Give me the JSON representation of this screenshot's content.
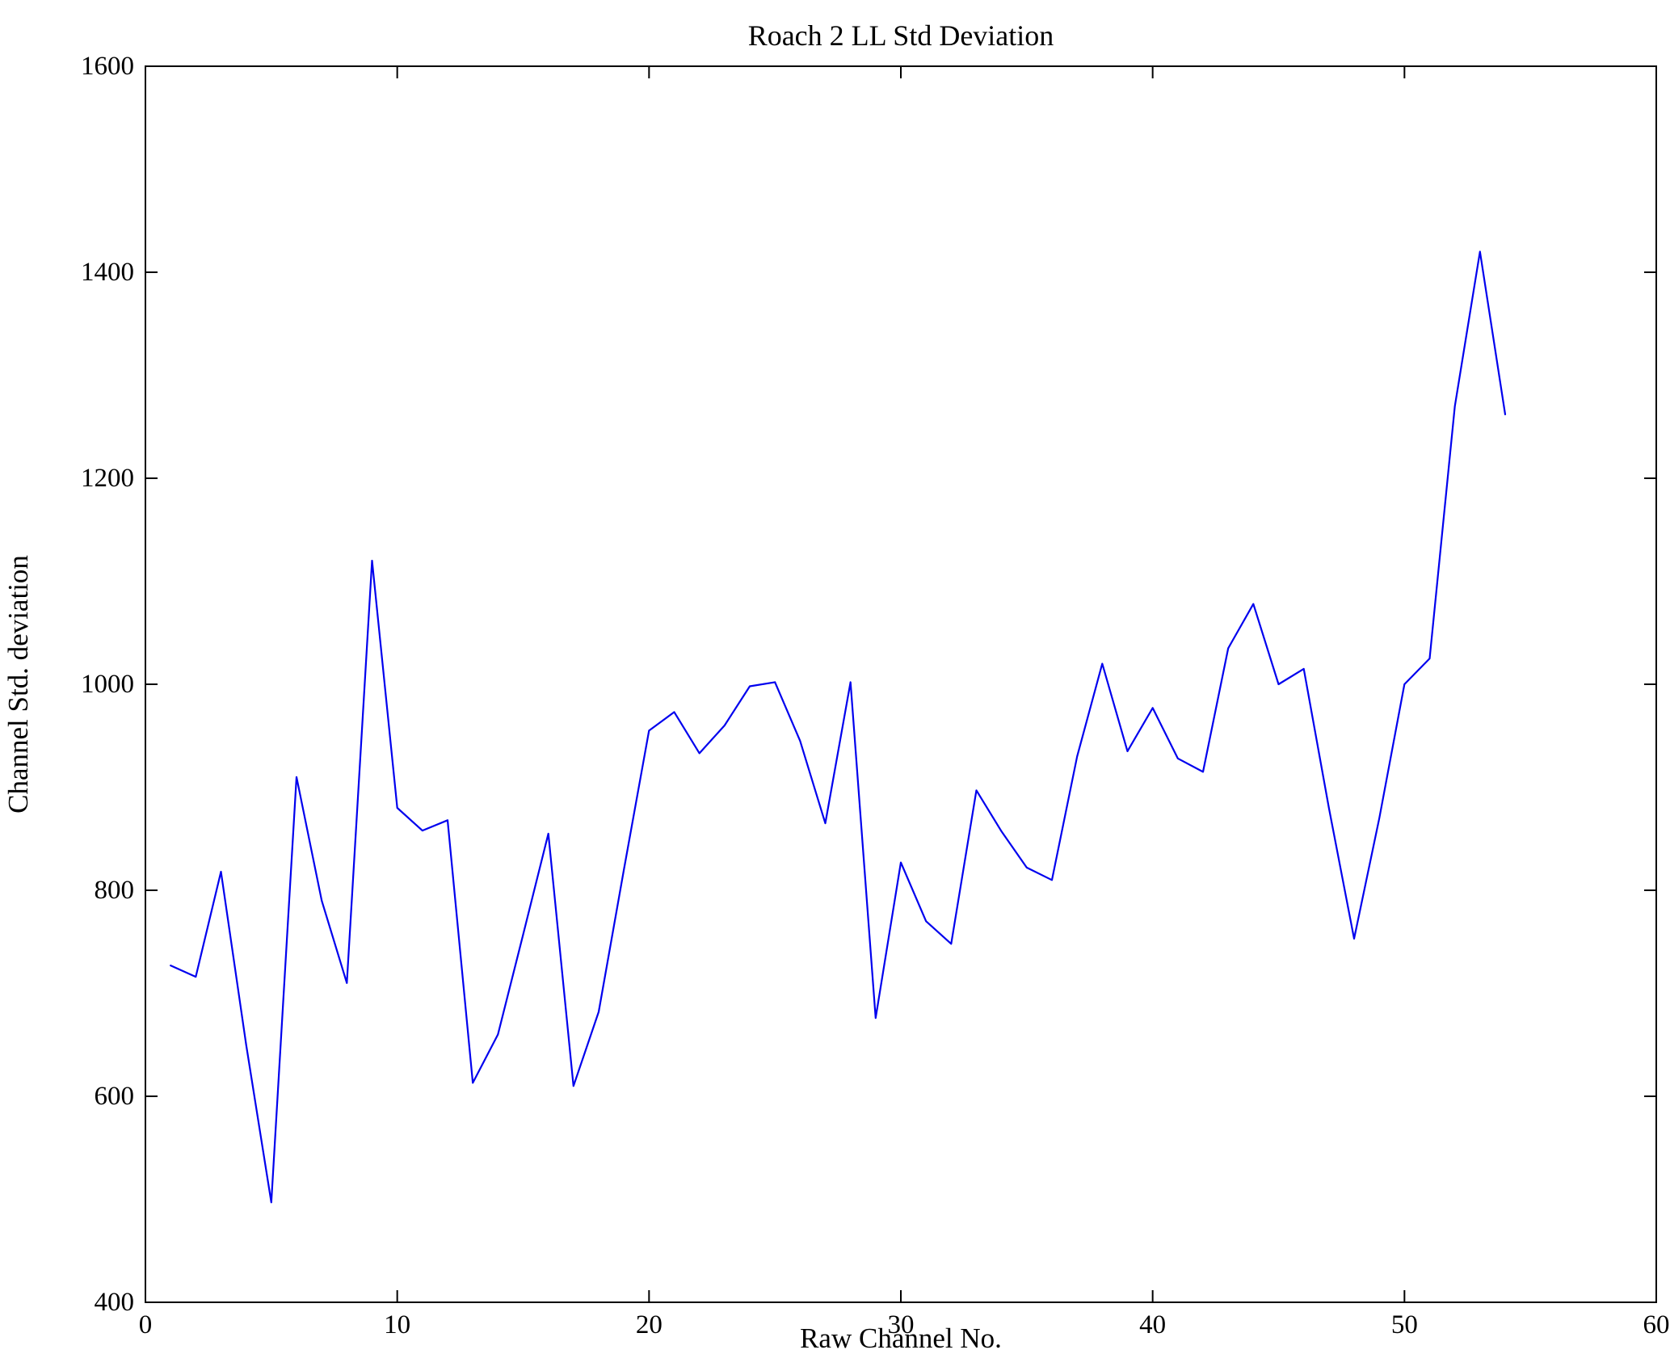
{
  "chart_data": {
    "type": "line",
    "title": "Roach 2 LL Std Deviation",
    "xlabel": "Raw Channel No.",
    "ylabel": "Channel Std. deviation",
    "xlim": [
      0,
      60
    ],
    "ylim": [
      400,
      1600
    ],
    "x_ticks": [
      0,
      10,
      20,
      30,
      40,
      50,
      60
    ],
    "y_ticks": [
      400,
      600,
      800,
      1000,
      1200,
      1400,
      1600
    ],
    "grid": false,
    "legend_position": "none",
    "line_color": "#0000ee",
    "x": [
      1,
      2,
      3,
      4,
      5,
      6,
      7,
      8,
      9,
      10,
      11,
      12,
      13,
      14,
      15,
      16,
      17,
      18,
      19,
      20,
      21,
      22,
      23,
      24,
      25,
      26,
      27,
      28,
      29,
      30,
      31,
      32,
      33,
      34,
      35,
      36,
      37,
      38,
      39,
      40,
      41,
      42,
      43,
      44,
      45,
      46,
      47,
      48,
      49,
      50,
      51,
      52,
      53,
      54
    ],
    "values": [
      727,
      716,
      818,
      650,
      497,
      910,
      790,
      710,
      1120,
      880,
      858,
      868,
      613,
      660,
      757,
      855,
      610,
      682,
      820,
      955,
      973,
      933,
      960,
      998,
      1002,
      945,
      865,
      1002,
      676,
      827,
      770,
      748,
      897,
      857,
      822,
      810,
      930,
      1020,
      935,
      977,
      928,
      915,
      1035,
      1078,
      1000,
      1015,
      880,
      753,
      870,
      1000,
      1025,
      1270,
      1420,
      1262
    ]
  }
}
